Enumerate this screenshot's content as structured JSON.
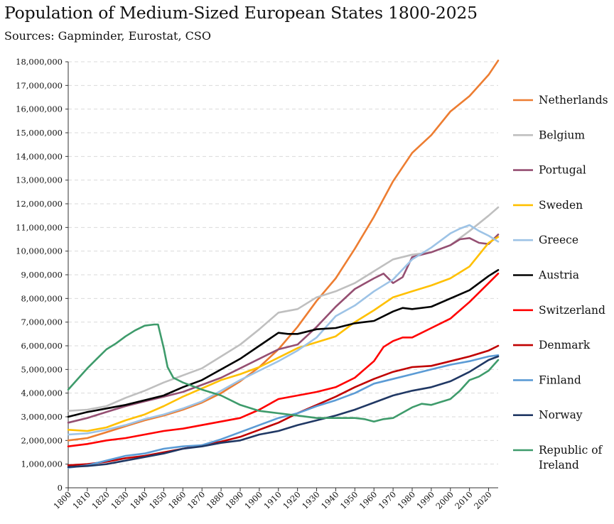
{
  "title": "Population of Medium-Sized European States 1800-2025",
  "subtitle": "Sources: Gapminder, Eurostat, CSO",
  "chart_data": {
    "type": "line",
    "title": "Population of Medium-Sized European States 1800-2025",
    "xlabel": "",
    "ylabel": "",
    "xlim": [
      1800,
      2025
    ],
    "ylim": [
      0,
      18000000
    ],
    "yticks": [
      "0",
      "1,000,000",
      "2,000,000",
      "3,000,000",
      "4,000,000",
      "5,000,000",
      "6,000,000",
      "7,000,000",
      "8,000,000",
      "9,000,000",
      "10,000,000",
      "11,000,000",
      "12,000,000",
      "13,000,000",
      "14,000,000",
      "15,000,000",
      "16,000,000",
      "17,000,000",
      "18,000,000"
    ],
    "xticks": [
      "1800",
      "1810",
      "1820",
      "1830",
      "1840",
      "1850",
      "1860",
      "1870",
      "1880",
      "1890",
      "1900",
      "1910",
      "1920",
      "1930",
      "1940",
      "1950",
      "1960",
      "1970",
      "1980",
      "1990",
      "2000",
      "2010",
      "2020"
    ],
    "grid": "horizontal dashed",
    "legend": "right",
    "series": [
      {
        "name": "Netherlands",
        "color": "#ED7D31",
        "x": [
          1800,
          1810,
          1820,
          1830,
          1840,
          1850,
          1860,
          1870,
          1880,
          1890,
          1900,
          1910,
          1920,
          1930,
          1940,
          1950,
          1960,
          1970,
          1980,
          1990,
          2000,
          2010,
          2020,
          2025
        ],
        "y": [
          2000000,
          2100000,
          2350000,
          2600000,
          2850000,
          3050000,
          3300000,
          3600000,
          4000000,
          4500000,
          5100000,
          5850000,
          6800000,
          7900000,
          8850000,
          10100000,
          11450000,
          12950000,
          14150000,
          14900000,
          15900000,
          16550000,
          17450000,
          18050000
        ]
      },
      {
        "name": "Belgium",
        "color": "#BFBFBF",
        "x": [
          1800,
          1810,
          1820,
          1830,
          1840,
          1850,
          1860,
          1870,
          1880,
          1890,
          1900,
          1910,
          1920,
          1930,
          1940,
          1950,
          1960,
          1970,
          1980,
          1990,
          2000,
          2010,
          2020,
          2025
        ],
        "y": [
          3250000,
          3300000,
          3450000,
          3800000,
          4100000,
          4450000,
          4750000,
          5050000,
          5550000,
          6050000,
          6700000,
          7400000,
          7550000,
          8050000,
          8300000,
          8650000,
          9150000,
          9650000,
          9850000,
          9950000,
          10250000,
          10850000,
          11500000,
          11850000
        ]
      },
      {
        "name": "Portugal",
        "color": "#954F72",
        "x": [
          1800,
          1810,
          1820,
          1830,
          1840,
          1850,
          1860,
          1870,
          1880,
          1890,
          1900,
          1910,
          1920,
          1930,
          1940,
          1950,
          1960,
          1965,
          1970,
          1975,
          1980,
          1990,
          2000,
          2005,
          2010,
          2015,
          2020,
          2025
        ],
        "y": [
          2750000,
          2950000,
          3200000,
          3450000,
          3650000,
          3850000,
          4050000,
          4350000,
          4650000,
          5050000,
          5450000,
          5850000,
          6050000,
          6800000,
          7650000,
          8400000,
          8850000,
          9050000,
          8650000,
          8900000,
          9750000,
          9950000,
          10250000,
          10500000,
          10550000,
          10350000,
          10300000,
          10700000
        ]
      },
      {
        "name": "Sweden",
        "color": "#FFC000",
        "x": [
          1800,
          1810,
          1820,
          1830,
          1840,
          1850,
          1860,
          1870,
          1880,
          1890,
          1900,
          1910,
          1920,
          1930,
          1940,
          1950,
          1960,
          1970,
          1980,
          1990,
          2000,
          2010,
          2020,
          2025
        ],
        "y": [
          2450000,
          2400000,
          2550000,
          2850000,
          3100000,
          3450000,
          3850000,
          4200000,
          4550000,
          4800000,
          5100000,
          5500000,
          5900000,
          6150000,
          6400000,
          7000000,
          7500000,
          8050000,
          8300000,
          8550000,
          8850000,
          9350000,
          10350000,
          10600000
        ]
      },
      {
        "name": "Greece",
        "color": "#9DC3E6",
        "x": [
          1800,
          1810,
          1820,
          1830,
          1840,
          1850,
          1860,
          1870,
          1880,
          1890,
          1900,
          1910,
          1920,
          1930,
          1940,
          1950,
          1960,
          1970,
          1980,
          1990,
          2000,
          2005,
          2010,
          2015,
          2020,
          2025
        ],
        "y": [
          2250000,
          2300000,
          2450000,
          2650000,
          2900000,
          3100000,
          3350000,
          3650000,
          4100000,
          4550000,
          4950000,
          5350000,
          5800000,
          6350000,
          7250000,
          7700000,
          8300000,
          8800000,
          9650000,
          10150000,
          10750000,
          10950000,
          11100000,
          10850000,
          10650000,
          10400000
        ]
      },
      {
        "name": "Austria",
        "color": "#000000",
        "x": [
          1800,
          1810,
          1820,
          1830,
          1840,
          1850,
          1860,
          1870,
          1880,
          1890,
          1900,
          1910,
          1915,
          1920,
          1930,
          1940,
          1950,
          1960,
          1970,
          1975,
          1980,
          1990,
          2000,
          2010,
          2020,
          2025
        ],
        "y": [
          3000000,
          3200000,
          3350000,
          3500000,
          3700000,
          3900000,
          4250000,
          4550000,
          5000000,
          5450000,
          6000000,
          6550000,
          6500000,
          6500000,
          6700000,
          6750000,
          6950000,
          7050000,
          7450000,
          7600000,
          7550000,
          7650000,
          8000000,
          8350000,
          8950000,
          9200000
        ]
      },
      {
        "name": "Switzerland",
        "color": "#FF0000",
        "x": [
          1800,
          1810,
          1820,
          1830,
          1840,
          1850,
          1860,
          1870,
          1880,
          1890,
          1900,
          1910,
          1920,
          1930,
          1940,
          1950,
          1960,
          1965,
          1970,
          1975,
          1980,
          1990,
          2000,
          2010,
          2020,
          2025
        ],
        "y": [
          1750000,
          1850000,
          2000000,
          2100000,
          2250000,
          2400000,
          2500000,
          2650000,
          2800000,
          2950000,
          3300000,
          3750000,
          3900000,
          4050000,
          4250000,
          4650000,
          5350000,
          5950000,
          6200000,
          6350000,
          6350000,
          6750000,
          7150000,
          7850000,
          8650000,
          9050000
        ]
      },
      {
        "name": "Denmark",
        "color": "#C00000",
        "x": [
          1800,
          1810,
          1820,
          1830,
          1840,
          1850,
          1860,
          1870,
          1880,
          1890,
          1900,
          1910,
          1920,
          1930,
          1940,
          1950,
          1960,
          1970,
          1980,
          1990,
          2000,
          2010,
          2020,
          2025
        ],
        "y": [
          950000,
          1000000,
          1100000,
          1250000,
          1350000,
          1500000,
          1650000,
          1800000,
          1950000,
          2150000,
          2450000,
          2750000,
          3150000,
          3500000,
          3850000,
          4250000,
          4600000,
          4900000,
          5100000,
          5150000,
          5350000,
          5550000,
          5800000,
          6000000
        ]
      },
      {
        "name": "Finland",
        "color": "#5B9BD5",
        "x": [
          1800,
          1810,
          1820,
          1830,
          1840,
          1850,
          1860,
          1870,
          1880,
          1890,
          1900,
          1910,
          1920,
          1930,
          1940,
          1950,
          1960,
          1970,
          1980,
          1990,
          2000,
          2010,
          2020,
          2025
        ],
        "y": [
          850000,
          950000,
          1150000,
          1350000,
          1450000,
          1650000,
          1750000,
          1800000,
          2050000,
          2350000,
          2650000,
          2950000,
          3150000,
          3450000,
          3700000,
          4000000,
          4400000,
          4600000,
          4800000,
          5000000,
          5200000,
          5350000,
          5550000,
          5600000
        ]
      },
      {
        "name": "Norway",
        "color": "#203864",
        "x": [
          1800,
          1810,
          1820,
          1830,
          1840,
          1850,
          1860,
          1870,
          1880,
          1890,
          1900,
          1910,
          1920,
          1930,
          1940,
          1950,
          1960,
          1970,
          1980,
          1990,
          2000,
          2010,
          2020,
          2025
        ],
        "y": [
          880000,
          920000,
          1000000,
          1150000,
          1300000,
          1450000,
          1650000,
          1750000,
          1900000,
          2000000,
          2250000,
          2400000,
          2650000,
          2850000,
          3050000,
          3300000,
          3600000,
          3900000,
          4100000,
          4250000,
          4500000,
          4900000,
          5400000,
          5550000
        ]
      },
      {
        "name": "Republic of Ireland",
        "color": "#3E9B6B",
        "x": [
          1800,
          1805,
          1810,
          1815,
          1820,
          1825,
          1830,
          1835,
          1840,
          1845,
          1847,
          1850,
          1852,
          1855,
          1860,
          1870,
          1880,
          1890,
          1900,
          1910,
          1920,
          1930,
          1940,
          1950,
          1955,
          1960,
          1965,
          1970,
          1980,
          1985,
          1990,
          2000,
          2005,
          2010,
          2015,
          2020,
          2025
        ],
        "y": [
          4150000,
          4600000,
          5050000,
          5450000,
          5850000,
          6100000,
          6400000,
          6650000,
          6850000,
          6900000,
          6900000,
          5900000,
          5100000,
          4650000,
          4450000,
          4150000,
          3900000,
          3500000,
          3250000,
          3150000,
          3050000,
          2950000,
          2950000,
          2950000,
          2900000,
          2800000,
          2900000,
          2950000,
          3400000,
          3550000,
          3500000,
          3750000,
          4100000,
          4550000,
          4700000,
          4950000,
          5400000
        ]
      }
    ]
  }
}
